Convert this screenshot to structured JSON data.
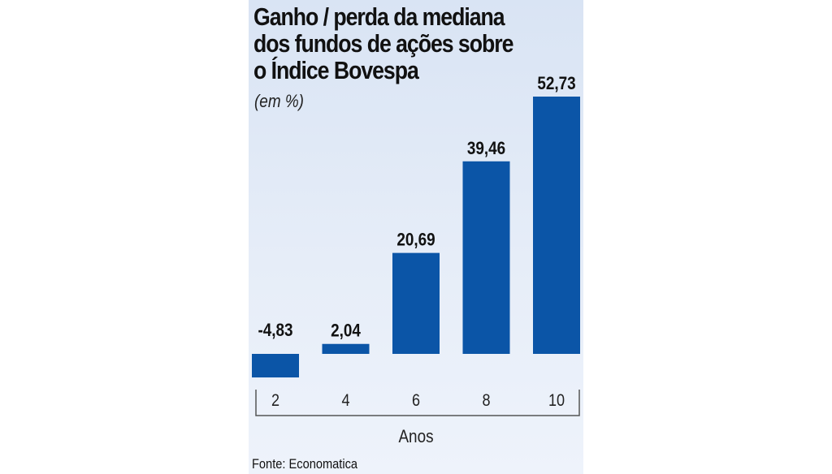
{
  "title_lines": [
    "Ganho / perda da mediana",
    "dos fundos de ações sobre",
    "o Índice Bovespa"
  ],
  "subtitle": "(em %)",
  "source": "Fonte: Economatica",
  "colors": {
    "bar": "#0b55a7",
    "background_top": "#d9e4f4",
    "background_bottom": "#eef3fb"
  },
  "chart_data": {
    "type": "bar",
    "title": "Ganho / perda da mediana dos fundos de ações sobre o Índice Bovespa",
    "subtitle": "(em %)",
    "xlabel": "Anos",
    "ylabel": "",
    "categories": [
      "2",
      "4",
      "6",
      "8",
      "10"
    ],
    "values": [
      -4.83,
      2.04,
      20.69,
      39.46,
      52.73
    ],
    "value_labels": [
      "-4,83",
      "2,04",
      "20,69",
      "39,46",
      "52,73"
    ],
    "ylim": [
      -4.83,
      52.73
    ],
    "grid": false,
    "legend": "none"
  }
}
